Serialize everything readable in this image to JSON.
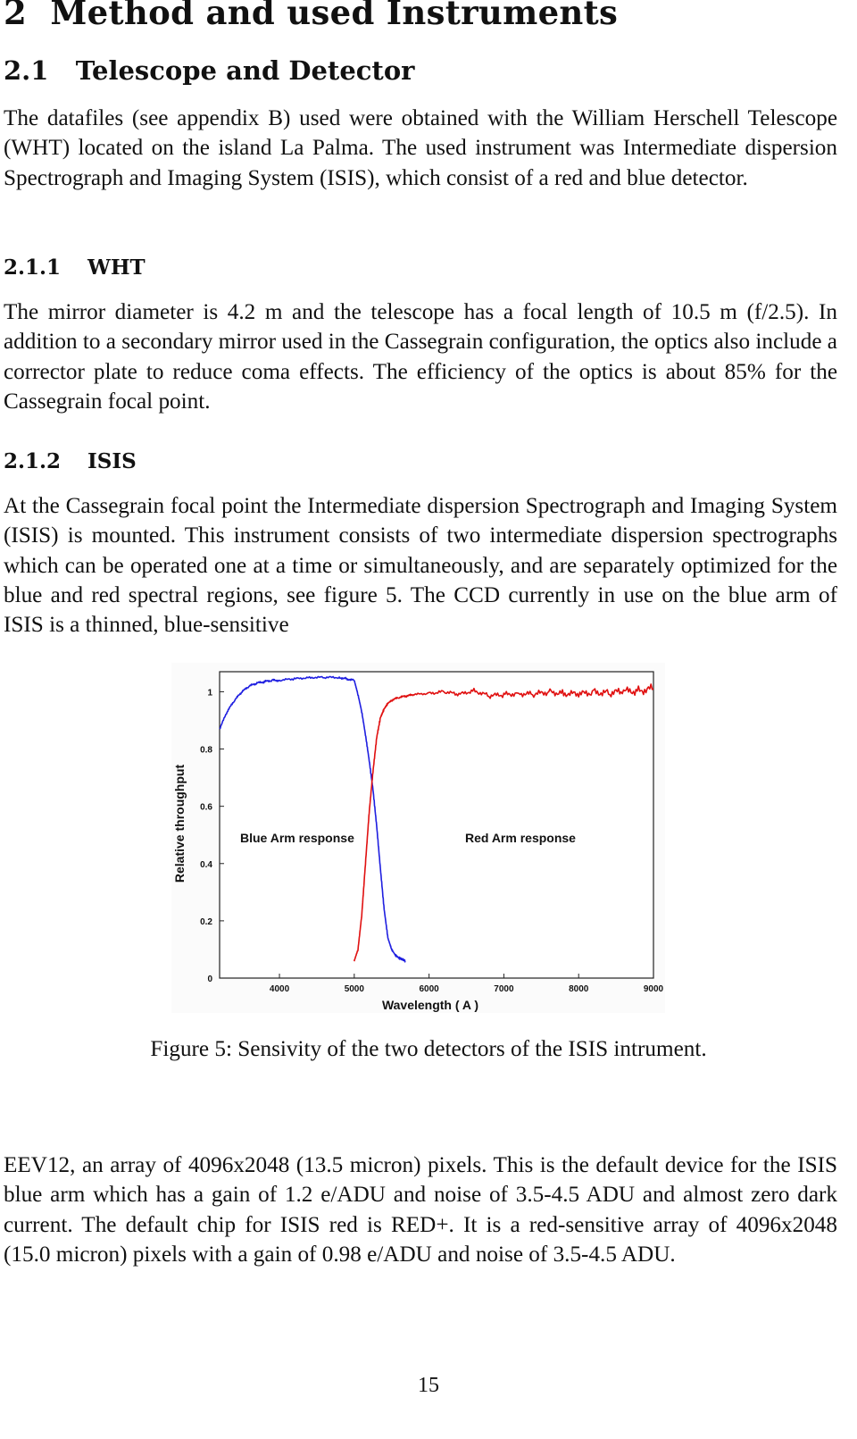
{
  "section": {
    "number": "2",
    "title": "Method and used Instruments"
  },
  "subsection": {
    "number": "2.1",
    "title": "Telescope and Detector"
  },
  "para_intro": "The datafiles (see appendix B) used were obtained with the William Herschell Telescope (WHT) located on the island La Palma. The used instrument was Intermediate dispersion Spectrograph and Imaging System (ISIS), which consist of a red and blue detector.",
  "subsubsection_wht": {
    "number": "2.1.1",
    "title": "WHT"
  },
  "para_wht": "The mirror diameter is 4.2 m and the telescope has a focal length of 10.5 m (f/2.5). In addition to a secondary mirror used in the Cassegrain configuration, the optics also include a corrector plate to reduce coma effects. The efficiency of the optics is about 85% for the Cassegrain focal point.",
  "subsubsection_isis": {
    "number": "2.1.2",
    "title": "ISIS"
  },
  "para_isis": "At the Cassegrain focal point the Intermediate dispersion Spectrograph and Imaging System (ISIS) is mounted. This instrument consists of two intermediate dispersion spectrographs which can be operated one at a time or simultaneously, and are separately optimized for the blue and red spectral regions, see figure 5. The CCD currently in use on the blue arm of ISIS is a thinned, blue-sensitive",
  "figure_caption": "Figure 5: Sensivity of the two detectors of the ISIS intrument.",
  "para_after": "EEV12, an array of 4096x2048 (13.5 micron) pixels. This is the default device for the ISIS blue arm which has a gain of 1.2 e/ADU and noise of 3.5-4.5 ADU and almost zero dark current. The default chip for ISIS red is RED+. It is a red-sensitive array of 4096x2048 (15.0 micron) pixels with a gain of 0.98 e/ADU and noise of 3.5-4.5 ADU.",
  "page_number": "15",
  "chart_data": {
    "type": "line",
    "xlabel": "Wavelength ( A )",
    "ylabel": "Relative throughput",
    "xlim": [
      3200,
      9000
    ],
    "ylim": [
      0,
      1.07
    ],
    "x_ticks": [
      "4000",
      "5000",
      "6000",
      "7000",
      "8000",
      "9000"
    ],
    "y_ticks": [
      "0",
      "0.2",
      "0.4",
      "0.6",
      "0.8",
      "1"
    ],
    "annotations": [
      "Blue Arm response",
      "Red Arm response"
    ],
    "grid": false,
    "series": [
      {
        "name": "Blue Arm response",
        "color": "#1f1fe0",
        "x": [
          3200,
          3300,
          3400,
          3500,
          3600,
          3700,
          3800,
          3900,
          4000,
          4200,
          4400,
          4600,
          4800,
          4900,
          5000,
          5050,
          5100,
          5150,
          5200,
          5250,
          5300,
          5350,
          5400,
          5450,
          5500,
          5550,
          5600,
          5650,
          5680
        ],
        "y": [
          0.87,
          0.93,
          0.97,
          1.0,
          1.02,
          1.03,
          1.035,
          1.04,
          1.04,
          1.045,
          1.05,
          1.05,
          1.05,
          1.045,
          1.04,
          0.99,
          0.93,
          0.85,
          0.76,
          0.66,
          0.53,
          0.38,
          0.24,
          0.14,
          0.1,
          0.08,
          0.07,
          0.065,
          0.06
        ]
      },
      {
        "name": "Red Arm response",
        "color": "#e01010",
        "x": [
          5000,
          5050,
          5100,
          5150,
          5200,
          5250,
          5300,
          5350,
          5400,
          5450,
          5500,
          5600,
          5700,
          5800,
          6000,
          6200,
          6400,
          6600,
          6800,
          7000,
          7200,
          7400,
          7600,
          7800,
          8000,
          8200,
          8400,
          8600,
          8800,
          9000
        ],
        "y": [
          0.06,
          0.1,
          0.22,
          0.4,
          0.58,
          0.72,
          0.84,
          0.91,
          0.94,
          0.96,
          0.97,
          0.98,
          0.985,
          0.99,
          0.995,
          1.0,
          0.99,
          1.005,
          0.985,
          0.99,
          0.995,
          0.99,
          1.0,
          0.995,
          0.99,
          1.0,
          0.995,
          1.0,
          1.005,
          1.01
        ]
      }
    ]
  }
}
